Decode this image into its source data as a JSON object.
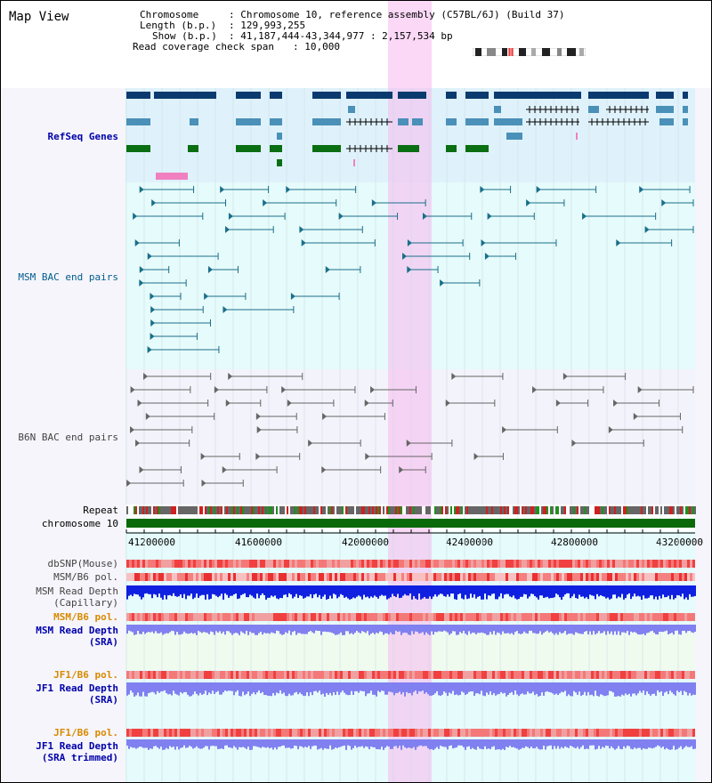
{
  "title": "Map View",
  "header": {
    "chromosome_label": "Chromosome",
    "chromosome_value": ": Chromosome 10, reference assembly (C57BL/6J) (Build 37)",
    "length_label": "Length (b.p.)",
    "length_value": ": 129,993,255",
    "show_label": "Show (b.p.)",
    "show_value": ": 41,187,444-43,344,977 : 2,157,534 bp",
    "span_label": "Read coverage check span",
    "span_value": ": 10,000"
  },
  "tracks": {
    "refseq": "RefSeq Genes",
    "msm_bac": "MSM BAC end pairs",
    "b6n_bac": "B6N BAC end pairs",
    "repeat": "Repeat",
    "chromosome": "chromosome 10",
    "dbsnp": "dbSNP(Mouse)",
    "msm_b6_pol_1": "MSM/B6 pol.",
    "msm_read_depth_cap": "MSM Read Depth\n(Capillary)",
    "msm_b6_pol_2": "MSM/B6 pol.",
    "msm_read_depth_sra": "MSM Read Depth\n(SRA)",
    "jf1_b6_pol_1": "JF1/B6 pol.",
    "jf1_read_depth_sra": "JF1 Read Depth\n(SRA)",
    "jf1_b6_pol_2": "JF1/B6 pol.",
    "jf1_read_depth_trim": "JF1 Read Depth\n(SRA trimmed)"
  },
  "axis": {
    "ticks": [
      "41200000",
      "41600000",
      "42000000",
      "42400000",
      "42800000",
      "43200000"
    ]
  },
  "colors": {
    "highlight": "#f6bef0",
    "refseq_bg": "#dff2fb",
    "msm_bg": "#e6fbfb",
    "b6n_bg": "#f2f2fb",
    "gene_navy": "#0b3b6e",
    "gene_steel": "#4a90b8",
    "gene_green": "#0a6e12",
    "msm_pair": "#1a6f8a",
    "b6n_pair": "#666666",
    "chromosome_bar": "#0a6a0a",
    "read_depth_dark": "#1020e0",
    "read_depth_light": "#8080f0"
  }
}
